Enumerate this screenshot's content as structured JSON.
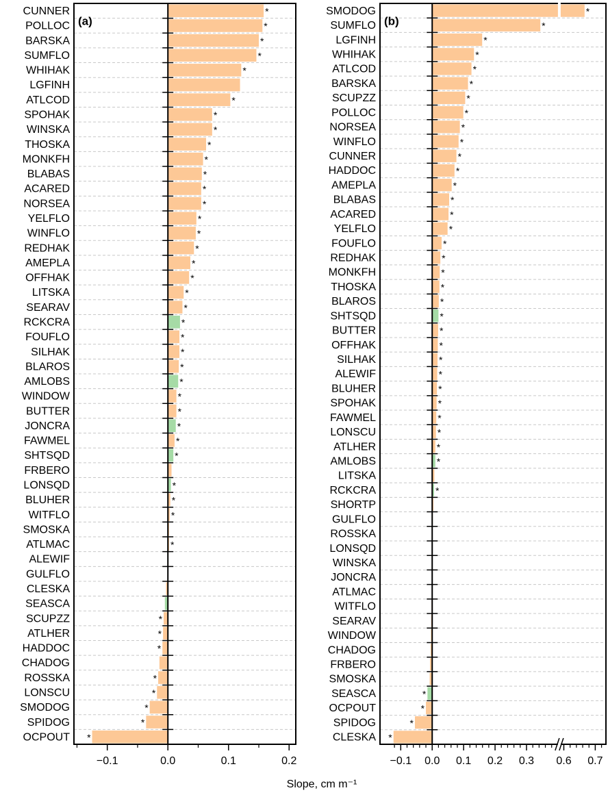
{
  "chart_data": [
    {
      "type": "bar",
      "orientation": "horizontal",
      "panel_label": "(a)",
      "xlabel": "Slope, cm m⁻¹",
      "sig_label": "*",
      "grid": true,
      "palette": [
        "#fdc896",
        "#a6dba6"
      ],
      "categories": [
        "CUNNER",
        "POLLOC",
        "BARSKA",
        "SUMFLO",
        "WHIHAK",
        "LGFINH",
        "ATLCOD",
        "SPOHAK",
        "WINSKA",
        "THOSKA",
        "MONKFH",
        "BLABAS",
        "ACARED",
        "NORSEA",
        "YELFLO",
        "WINFLO",
        "REDHAK",
        "AMEPLA",
        "OFFHAK",
        "LITSKA",
        "SEARAV",
        "RCKCRA",
        "FOUFLO",
        "SILHAK",
        "BLAROS",
        "AMLOBS",
        "WINDOW",
        "BUTTER",
        "JONCRA",
        "FAWMEL",
        "SHTSQD",
        "FRBERO",
        "LONSQD",
        "BLUHER",
        "WITFLO",
        "SMOSKA",
        "ATLMAC",
        "ALEWIF",
        "GULFLO",
        "CLESKA",
        "SEASCA",
        "SCUPZZ",
        "ATLHER",
        "HADDOC",
        "CHADOG",
        "ROSSKA",
        "LONSCU",
        "SMODOG",
        "SPIDOG",
        "OCPOUT"
      ],
      "values": [
        0.158,
        0.156,
        0.15,
        0.146,
        0.121,
        0.119,
        0.103,
        0.073,
        0.073,
        0.063,
        0.058,
        0.056,
        0.055,
        0.055,
        0.047,
        0.046,
        0.043,
        0.037,
        0.035,
        0.026,
        0.024,
        0.02,
        0.019,
        0.019,
        0.018,
        0.017,
        0.014,
        0.014,
        0.013,
        0.011,
        0.009,
        0.006,
        0.005,
        0.004,
        0.003,
        0.002,
        0.002,
        0.001,
        0.0005,
        -0.003,
        -0.005,
        -0.007,
        -0.008,
        -0.009,
        -0.014,
        -0.016,
        -0.018,
        -0.03,
        -0.036,
        -0.125
      ],
      "color_index": [
        0,
        0,
        0,
        0,
        0,
        0,
        0,
        0,
        0,
        0,
        0,
        0,
        0,
        0,
        0,
        0,
        0,
        0,
        0,
        0,
        0,
        1,
        0,
        0,
        0,
        1,
        0,
        0,
        1,
        0,
        1,
        0,
        1,
        0,
        0,
        0,
        0,
        0,
        0,
        0,
        1,
        0,
        0,
        0,
        0,
        0,
        0,
        0,
        0,
        0
      ],
      "significant": [
        true,
        true,
        true,
        true,
        true,
        false,
        true,
        true,
        true,
        true,
        true,
        true,
        true,
        true,
        true,
        true,
        true,
        true,
        true,
        true,
        true,
        true,
        true,
        true,
        true,
        true,
        true,
        true,
        true,
        true,
        true,
        false,
        true,
        true,
        true,
        false,
        true,
        false,
        false,
        false,
        false,
        true,
        true,
        true,
        false,
        true,
        true,
        true,
        true,
        true
      ],
      "xlim": [
        -0.155,
        0.211
      ],
      "xticks": [
        {
          "value": -0.1,
          "label": "−0.1"
        },
        {
          "value": 0,
          "label": "0.0"
        },
        0.1,
        0.2
      ],
      "xminorticks": [
        -0.15,
        -0.05,
        0.05,
        0.15
      ]
    },
    {
      "type": "bar",
      "orientation": "horizontal",
      "panel_label": "(b)",
      "sig_label": "*",
      "grid": true,
      "palette": [
        "#fdc896",
        "#a6dba6"
      ],
      "x_break": [
        0.4,
        0.59
      ],
      "categories": [
        "SMODOG",
        "SUMFLO",
        "LGFINH",
        "WHIHAK",
        "ATLCOD",
        "BARSKA",
        "SCUPZZ",
        "POLLOC",
        "NORSEA",
        "WINFLO",
        "CUNNER",
        "HADDOC",
        "AMEPLA",
        "BLABAS",
        "ACARED",
        "YELFLO",
        "FOUFLO",
        "REDHAK",
        "MONKFH",
        "THOSKA",
        "BLAROS",
        "SHTSQD",
        "BUTTER",
        "OFFHAK",
        "SILHAK",
        "ALEWIF",
        "BLUHER",
        "SPOHAK",
        "FAWMEL",
        "LONSCU",
        "ATLHER",
        "AMLOBS",
        "LITSKA",
        "RCKCRA",
        "SHORTP",
        "GULFLO",
        "ROSSKA",
        "LONSQD",
        "WINSKA",
        "JONCRA",
        "ATLMAC",
        "WITFLO",
        "SEARAV",
        "WINDOW",
        "CHADOG",
        "FRBERO",
        "SMOSKA",
        "SEASCA",
        "OCPOUT",
        "SPIDOG",
        "CLESKA"
      ],
      "values": [
        0.666,
        0.344,
        0.159,
        0.133,
        0.125,
        0.114,
        0.105,
        0.099,
        0.088,
        0.084,
        0.077,
        0.071,
        0.062,
        0.054,
        0.052,
        0.049,
        0.03,
        0.026,
        0.024,
        0.023,
        0.021,
        0.02,
        0.019,
        0.018,
        0.017,
        0.016,
        0.015,
        0.014,
        0.013,
        0.012,
        0.01,
        0.01,
        0.007,
        0.006,
        0.004,
        0.002,
        0.001,
        0.001,
        0.0005,
        -0.001,
        -0.001,
        -0.002,
        -0.003,
        -0.004,
        -0.005,
        -0.007,
        -0.008,
        -0.015,
        -0.02,
        -0.055,
        -0.123
      ],
      "color_index": [
        0,
        0,
        0,
        0,
        0,
        0,
        0,
        0,
        0,
        0,
        0,
        0,
        0,
        0,
        0,
        0,
        0,
        0,
        0,
        0,
        0,
        1,
        0,
        0,
        0,
        0,
        0,
        0,
        0,
        0,
        0,
        1,
        0,
        1,
        0,
        0,
        0,
        0,
        0,
        0,
        0,
        0,
        0,
        0,
        0,
        0,
        0,
        1,
        0,
        0,
        0
      ],
      "significant": [
        true,
        true,
        true,
        true,
        true,
        true,
        true,
        true,
        true,
        true,
        true,
        true,
        true,
        true,
        true,
        true,
        true,
        true,
        true,
        true,
        true,
        true,
        true,
        true,
        true,
        true,
        true,
        true,
        true,
        true,
        true,
        true,
        false,
        true,
        false,
        false,
        false,
        false,
        false,
        false,
        false,
        false,
        false,
        false,
        false,
        false,
        false,
        true,
        true,
        true,
        true
      ],
      "xlim": [
        -0.166,
        0.734
      ],
      "xticks": [
        {
          "value": -0.1,
          "label": "−0.1"
        },
        {
          "value": 0,
          "label": "0.0"
        },
        0.1,
        0.2,
        0.3,
        0.6,
        0.7
      ],
      "xminorticks": [
        -0.12,
        -0.08,
        -0.06,
        -0.04,
        -0.02,
        0.02,
        0.04,
        0.06,
        0.08,
        0.12,
        0.14,
        0.16,
        0.18,
        0.22,
        0.24,
        0.26,
        0.28,
        0.32,
        0.34,
        0.36,
        0.38,
        0.62,
        0.64,
        0.66,
        0.68,
        0.72
      ]
    }
  ]
}
